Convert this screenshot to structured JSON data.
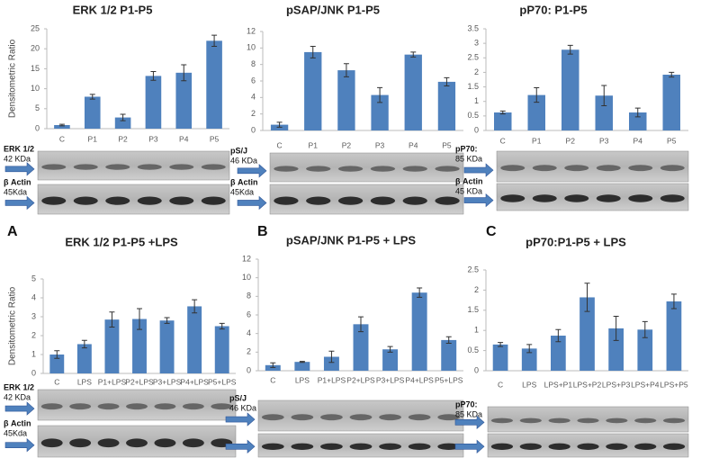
{
  "chart_data": [
    {
      "type": "bar",
      "title": "ERK 1/2 P1-P5",
      "y_label": "Densitometric Ratio",
      "color": "#4f81bd",
      "categories": [
        "C",
        "P1",
        "P2",
        "P3",
        "P4",
        "P5"
      ],
      "values": [
        0.9,
        8,
        2.8,
        13.2,
        14,
        22
      ],
      "errors": [
        0.2,
        0.6,
        0.8,
        1.1,
        2,
        1.4
      ],
      "ylim": [
        0,
        25
      ],
      "yticks": [
        0,
        5,
        10,
        15,
        20,
        25
      ],
      "blots": [
        {
          "label": "ERK 1/2",
          "size": "42 KDa"
        },
        {
          "label": "β Actin",
          "size": "45Kda"
        }
      ]
    },
    {
      "type": "bar",
      "title": "pSAP/JNK P1-P5",
      "color": "#4f81bd",
      "categories": [
        "C",
        "P1",
        "P2",
        "P3",
        "P4",
        "P5"
      ],
      "values": [
        0.7,
        9.5,
        7.3,
        4.3,
        9.2,
        5.9
      ],
      "errors": [
        0.3,
        0.7,
        0.8,
        0.9,
        0.3,
        0.5
      ],
      "ylim": [
        0,
        12
      ],
      "yticks": [
        0,
        2,
        4,
        6,
        8,
        10,
        12
      ],
      "blots": [
        {
          "label": "pS/J",
          "size": "46 KDa"
        },
        {
          "label": "β Actin",
          "size": "45Kda"
        }
      ]
    },
    {
      "type": "bar",
      "title": "pP70: P1-P5",
      "color": "#4f81bd",
      "categories": [
        "C",
        "P1",
        "P2",
        "P3",
        "P4",
        "P5"
      ],
      "values": [
        0.62,
        1.22,
        2.78,
        1.2,
        0.62,
        1.92
      ],
      "errors": [
        0.05,
        0.25,
        0.15,
        0.35,
        0.15,
        0.08
      ],
      "ylim": [
        0,
        3.5
      ],
      "yticks": [
        0,
        0.5,
        1,
        1.5,
        2,
        2.5,
        3,
        3.5
      ],
      "blots": [
        {
          "label": "pP70:",
          "size": "85 KDa"
        },
        {
          "label": "β Actin",
          "size": "45 KDa"
        }
      ]
    },
    {
      "type": "bar",
      "panel": "A",
      "title": "ERK 1/2 P1-P5 +LPS",
      "y_label": "Densitometric Ratio",
      "color": "#4f81bd",
      "categories": [
        "C",
        "LPS",
        "P1+LPS",
        "P2+LPS",
        "P3+LPS",
        "P4+LPS",
        "P5+LPS"
      ],
      "values": [
        1.0,
        1.55,
        2.85,
        2.88,
        2.8,
        3.55,
        2.5
      ],
      "errors": [
        0.2,
        0.2,
        0.4,
        0.55,
        0.15,
        0.35,
        0.15
      ],
      "ylim": [
        0,
        5
      ],
      "yticks": [
        0,
        1,
        2,
        3,
        4,
        5
      ],
      "blots": [
        {
          "label": "ERK 1/2",
          "size": "42 KDa"
        },
        {
          "label": "β Actin",
          "size": "45Kda"
        }
      ]
    },
    {
      "type": "bar",
      "panel": "B",
      "title": "pSAP/JNK P1-P5 + LPS",
      "color": "#4f81bd",
      "categories": [
        "C",
        "LPS",
        "P1+LPS",
        "P2+LPS",
        "P3+LPS",
        "P4+LPS",
        "P5+LPS"
      ],
      "values": [
        0.6,
        0.95,
        1.5,
        5.0,
        2.3,
        8.4,
        3.3
      ],
      "errors": [
        0.25,
        0.05,
        0.6,
        0.8,
        0.3,
        0.5,
        0.35
      ],
      "ylim": [
        0,
        12
      ],
      "yticks": [
        0,
        2,
        4,
        6,
        8,
        10,
        12
      ],
      "blots": [
        {
          "label": "pS/J",
          "size": "46 KDa"
        }
      ]
    },
    {
      "type": "bar",
      "panel": "C",
      "title": "pP70:P1-P5 + LPS",
      "color": "#4f81bd",
      "categories": [
        "C",
        "LPS",
        "LPS+P1",
        "LPS+P2",
        "LPS+P3",
        "LPS+P4",
        "LPS+P5"
      ],
      "values": [
        0.65,
        0.55,
        0.87,
        1.82,
        1.05,
        1.02,
        1.72
      ],
      "errors": [
        0.05,
        0.1,
        0.15,
        0.35,
        0.3,
        0.2,
        0.18
      ],
      "ylim": [
        0,
        2.5
      ],
      "yticks": [
        0,
        0.5,
        1,
        1.5,
        2,
        2.5
      ],
      "blots": [
        {
          "label": "pP70:",
          "size": "85 KDa"
        }
      ]
    }
  ]
}
